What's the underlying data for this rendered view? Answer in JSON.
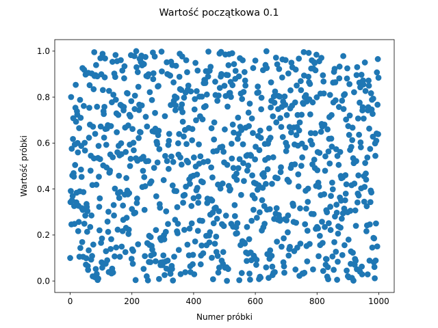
{
  "chart_data": {
    "type": "scatter",
    "title": "Wartość początkowa 0.1",
    "xlabel": "Numer próbki",
    "ylabel": "Wartość próbki",
    "xlim": [
      -50,
      1050
    ],
    "ylim": [
      -0.05,
      1.05
    ],
    "xticks": [
      0,
      200,
      400,
      600,
      800,
      1000
    ],
    "xtick_labels": [
      "0",
      "200",
      "400",
      "600",
      "800",
      "1000"
    ],
    "yticks": [
      0.0,
      0.2,
      0.4,
      0.6,
      0.8,
      1.0
    ],
    "ytick_labels": [
      "0.0",
      "0.2",
      "0.4",
      "0.6",
      "0.8",
      "1.0"
    ],
    "grid": false,
    "marker_color": "#1f77b4",
    "marker": "circle",
    "n_points": 1000,
    "x_range": [
      0,
      999
    ],
    "y_range": [
      0.0,
      1.0
    ],
    "distribution": "uniform",
    "points_sample": [
      {
        "x": 0,
        "y": 0.1
      },
      {
        "x": 1,
        "y": 0.36
      },
      {
        "x": 2,
        "y": 0.92
      },
      {
        "x": 3,
        "y": 0.29
      },
      {
        "x": 4,
        "y": 0.82
      },
      {
        "x": 5,
        "y": 0.59
      },
      {
        "x": 6,
        "y": 0.97
      },
      {
        "x": 7,
        "y": 0.1
      },
      {
        "x": 8,
        "y": 0.36
      },
      {
        "x": 9,
        "y": 0.92
      }
    ]
  }
}
